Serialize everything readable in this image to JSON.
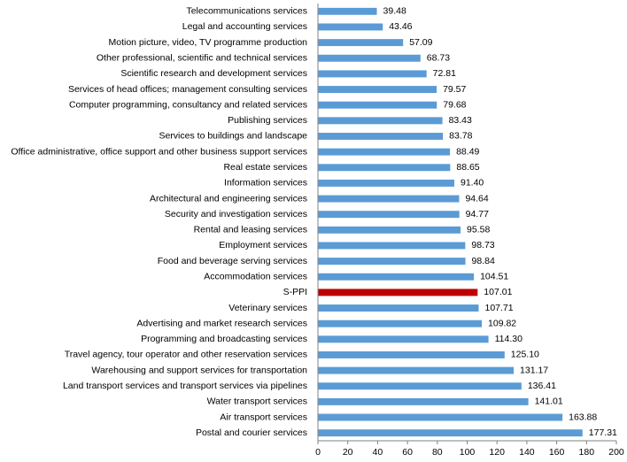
{
  "chart_data": {
    "type": "bar",
    "orientation": "horizontal",
    "title": "",
    "xlabel": "",
    "ylabel": "",
    "xlim": [
      0,
      200
    ],
    "x_ticks": [
      "0",
      "20",
      "40",
      "60",
      "80",
      "100",
      "120",
      "140",
      "160",
      "180",
      "200"
    ],
    "grid": false,
    "legend": "none",
    "bar_color": "#5B9BD5",
    "highlight_color": "#C00000",
    "highlight_category": "S-PPI",
    "categories": [
      "Telecommunications services",
      "Legal and accounting services",
      "Motion picture, video, TV programme production",
      "Other professional, scientific and technical services",
      "Scientific research and development services",
      "Services of head offices; management consulting services",
      "Computer programming, consultancy and related services",
      "Publishing services",
      "Services to buildings and landscape",
      "Office administrative, office support and other business support services",
      "Real estate services",
      "Information services",
      "Architectural and engineering services",
      "Security and investigation services",
      "Rental and leasing services",
      "Employment services",
      "Food and beverage serving services",
      "Accommodation services",
      "S-PPI",
      "Veterinary services",
      "Advertising and market research services",
      "Programming and broadcasting services",
      "Travel agency, tour operator and other reservation services",
      "Warehousing and support services for transportation",
      "Land transport services and transport services via pipelines",
      "Water transport services",
      "Air transport services",
      "Postal and courier services"
    ],
    "values": [
      39.48,
      43.46,
      57.09,
      68.73,
      72.81,
      79.57,
      79.68,
      83.43,
      83.78,
      88.49,
      88.65,
      91.4,
      94.64,
      94.77,
      95.58,
      98.73,
      98.84,
      104.51,
      107.01,
      107.71,
      109.82,
      114.3,
      125.1,
      131.17,
      136.41,
      141.01,
      163.88,
      177.31
    ],
    "value_labels": [
      "39.48",
      "43.46",
      "57.09",
      "68.73",
      "72.81",
      "79.57",
      "79.68",
      "83.43",
      "83.78",
      "88.49",
      "88.65",
      "91.40",
      "94.64",
      "94.77",
      "95.58",
      "98.73",
      "98.84",
      "104.51",
      "107.01",
      "107.71",
      "109.82",
      "114.30",
      "125.10",
      "131.17",
      "136.41",
      "141.01",
      "163.88",
      "177.31"
    ]
  }
}
